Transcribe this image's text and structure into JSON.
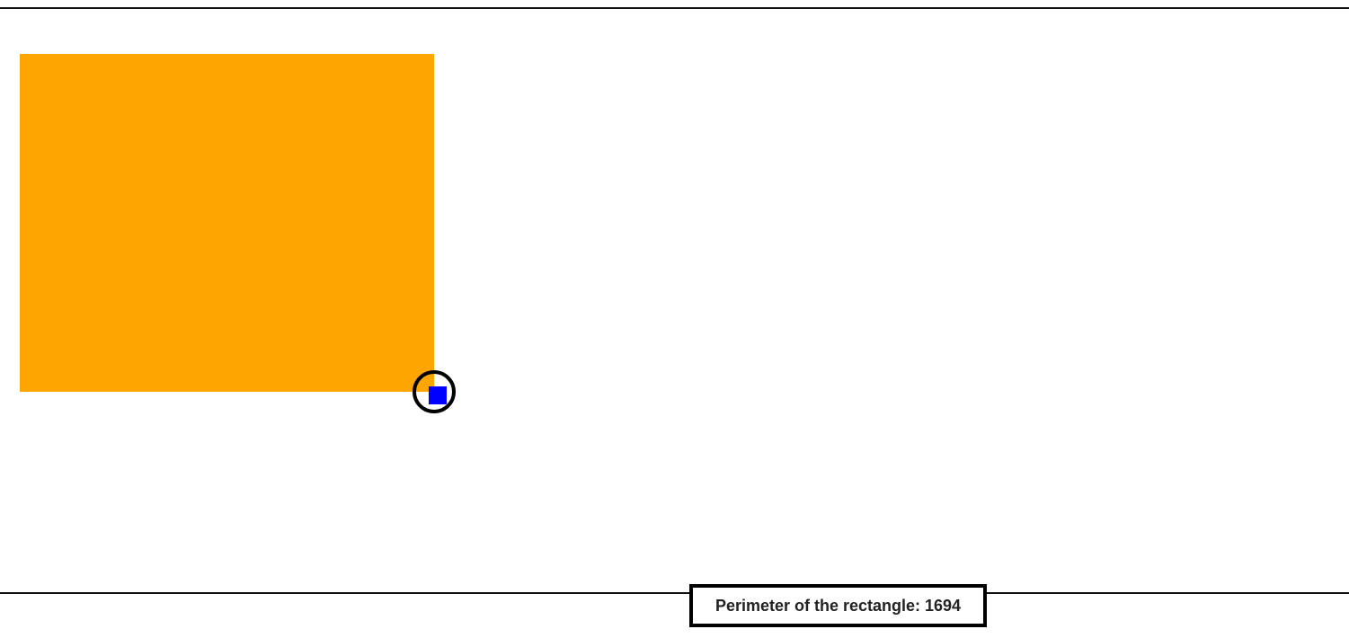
{
  "canvas": {
    "rectangle": {
      "fill_color": "#FFA500"
    },
    "handle": {
      "icon": "resize-handle-icon",
      "ring_color": "#000000",
      "square_color": "#0000FF"
    }
  },
  "status": {
    "perimeter_label": "Perimeter of the rectangle: 1694"
  }
}
